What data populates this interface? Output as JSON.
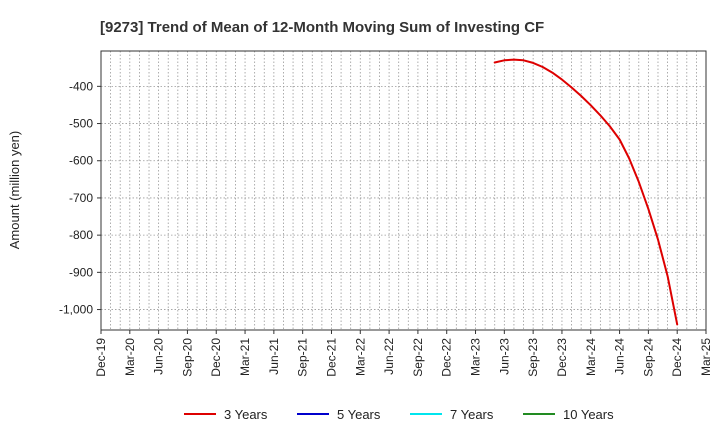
{
  "chart_data": {
    "type": "line",
    "title": "[9273]  Trend of Mean of 12-Month Moving Sum of Investing CF",
    "xlabel": "",
    "ylabel": "Amount (million yen)",
    "x_ticks": [
      "Dec-19",
      "Mar-20",
      "Jun-20",
      "Sep-20",
      "Dec-20",
      "Mar-21",
      "Jun-21",
      "Sep-21",
      "Dec-21",
      "Mar-22",
      "Jun-22",
      "Sep-22",
      "Dec-22",
      "Mar-23",
      "Jun-23",
      "Sep-23",
      "Dec-23",
      "Mar-24",
      "Jun-24",
      "Sep-24",
      "Dec-24",
      "Mar-25"
    ],
    "y_ticks": [
      -400,
      -500,
      -600,
      -700,
      -800,
      -900,
      -1000
    ],
    "y_tick_labels": [
      "-400",
      "-500",
      "-600",
      "-700",
      "-800",
      "-900",
      "-1,000"
    ],
    "ylim": [
      -1055,
      -305
    ],
    "xlim": [
      "2019-12",
      "2025-03"
    ],
    "grid": true,
    "legend_position": "bottom",
    "series": [
      {
        "name": "3 Years",
        "color": "#dd0000",
        "points": [
          [
            "2023-05",
            -336
          ],
          [
            "2023-06",
            -330
          ],
          [
            "2023-07",
            -328
          ],
          [
            "2023-08",
            -330
          ],
          [
            "2023-09",
            -337
          ],
          [
            "2023-10",
            -348
          ],
          [
            "2023-11",
            -363
          ],
          [
            "2023-12",
            -382
          ],
          [
            "2024-01",
            -403
          ],
          [
            "2024-02",
            -426
          ],
          [
            "2024-03",
            -451
          ],
          [
            "2024-04",
            -478
          ],
          [
            "2024-05",
            -508
          ],
          [
            "2024-06",
            -543
          ],
          [
            "2024-07",
            -594
          ],
          [
            "2024-08",
            -657
          ],
          [
            "2024-09",
            -730
          ],
          [
            "2024-10",
            -812
          ],
          [
            "2024-11",
            -910
          ],
          [
            "2024-12",
            -1040
          ]
        ]
      },
      {
        "name": "5 Years",
        "color": "#0000cc",
        "points": []
      },
      {
        "name": "7 Years",
        "color": "#00e5ee",
        "points": []
      },
      {
        "name": "10 Years",
        "color": "#228b22",
        "points": []
      }
    ]
  }
}
